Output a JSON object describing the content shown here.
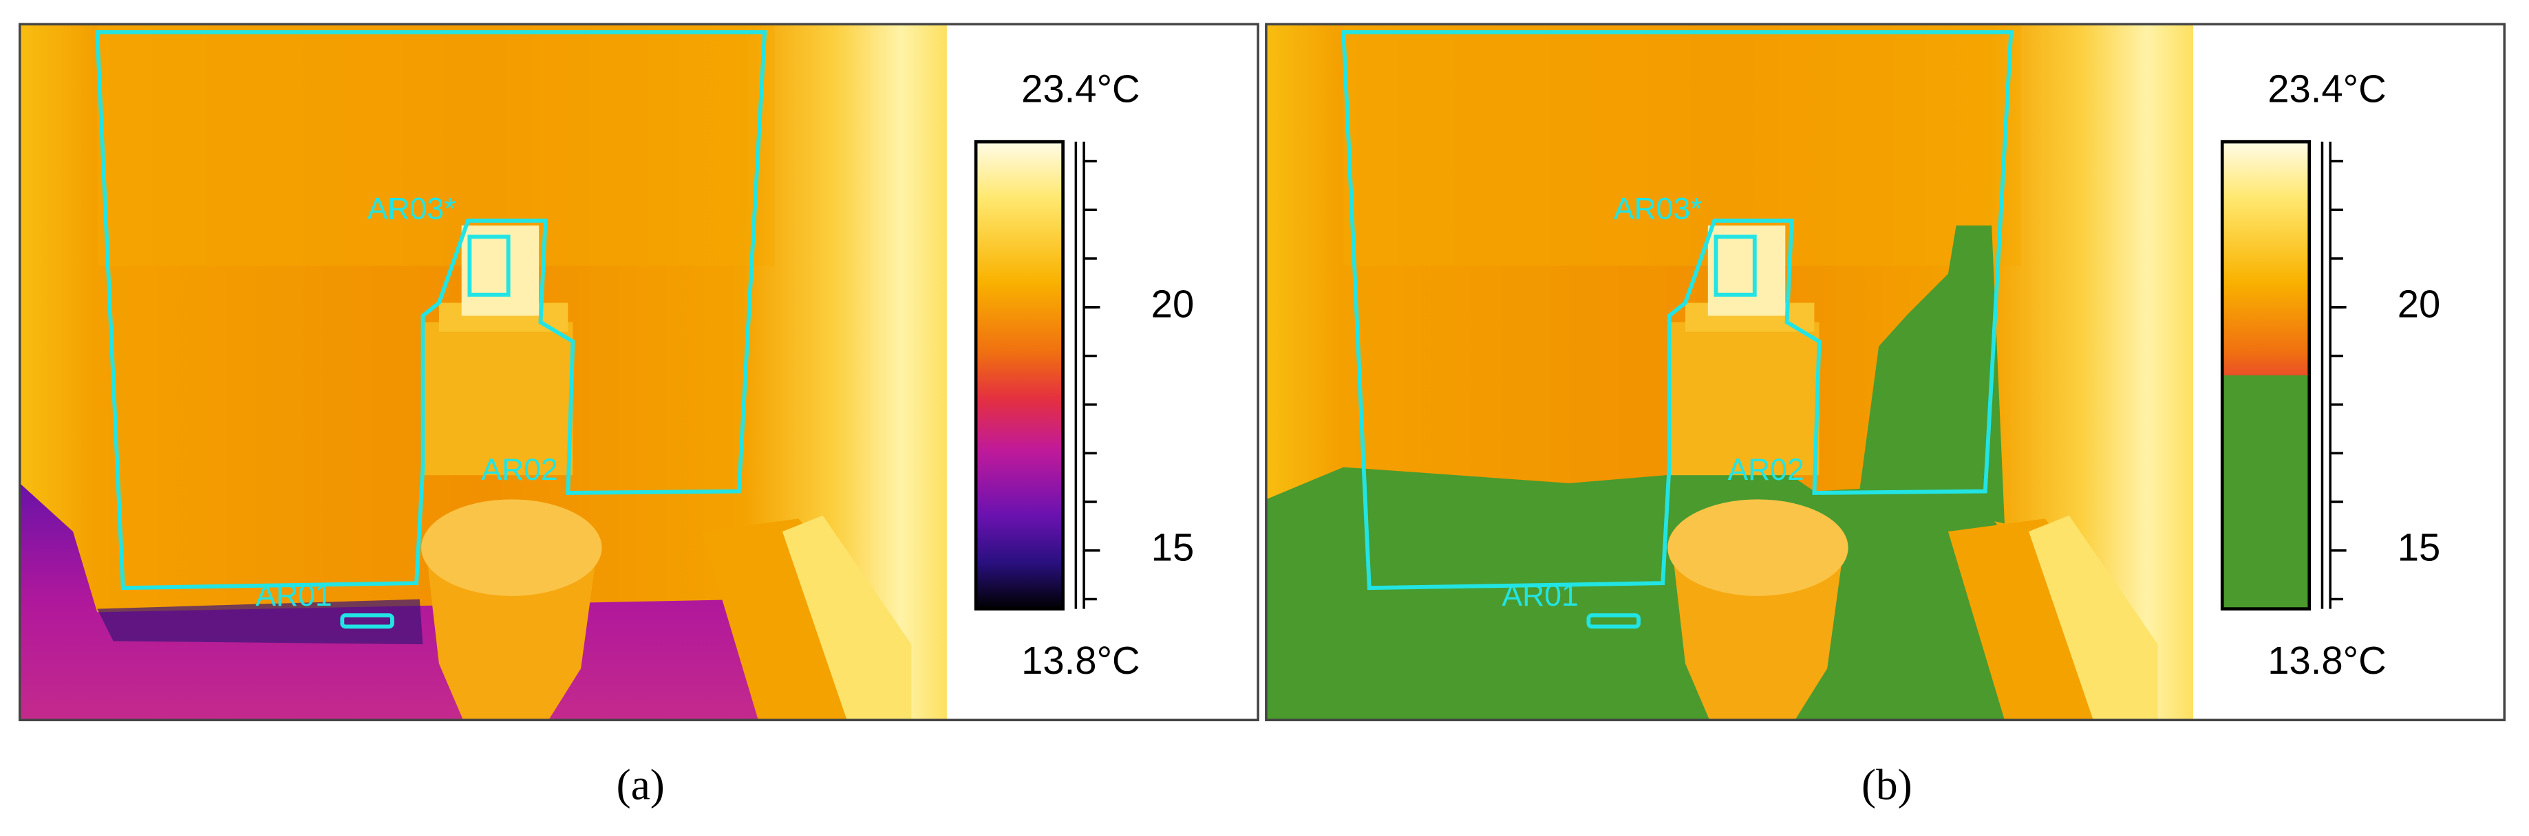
{
  "panels": [
    {
      "caption": "(a)",
      "roi_labels": [
        "AR03*",
        "AR02",
        "AR01"
      ],
      "colorbar": {
        "max_label": "23.4°C",
        "min_label": "13.8°C",
        "range": [
          13.8,
          23.4
        ],
        "ticks": [
          15,
          20
        ],
        "minor_ticks": [
          14,
          15,
          16,
          17,
          18,
          19,
          20,
          21,
          22,
          23
        ]
      }
    },
    {
      "caption": "(b)",
      "roi_labels": [
        "AR03*",
        "AR02",
        "AR01"
      ],
      "colorbar": {
        "max_label": "23.4°C",
        "min_label": "13.8°C",
        "range": [
          13.8,
          23.4
        ],
        "ticks": [
          15,
          20
        ],
        "minor_ticks": [
          14,
          15,
          16,
          17,
          18,
          19,
          20,
          21,
          22,
          23
        ]
      },
      "threshold": 18.6,
      "threshold_color": "#4a9a2e"
    }
  ]
}
